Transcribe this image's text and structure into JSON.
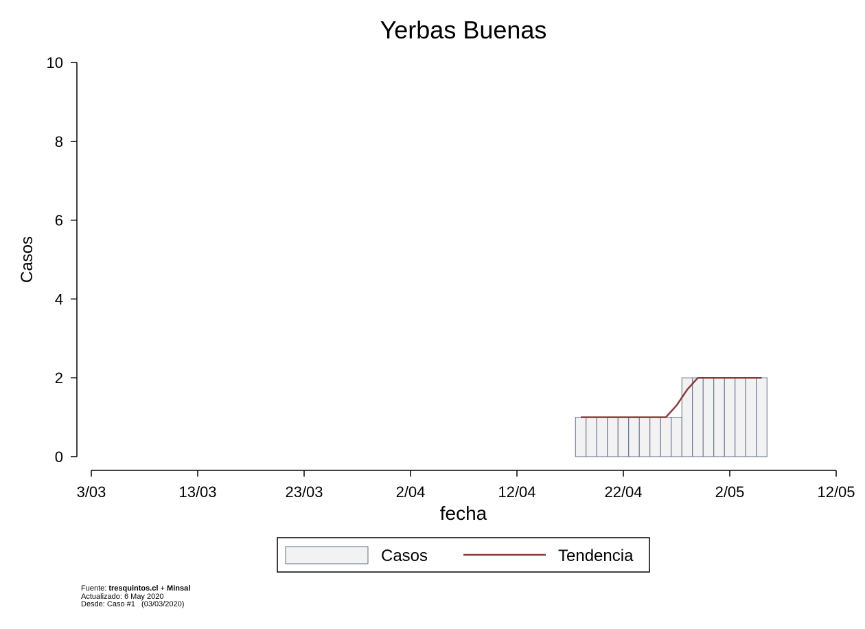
{
  "chart_data": {
    "type": "bar",
    "title": "Yerbas Buenas",
    "xlabel": "fecha",
    "ylabel": "Casos",
    "ylim": [
      0,
      10
    ],
    "yticks": [
      0,
      2,
      4,
      6,
      8,
      10
    ],
    "xticks": [
      "3/03",
      "13/03",
      "23/03",
      "2/04",
      "12/04",
      "22/04",
      "2/05",
      "12/05"
    ],
    "x_start_date": "2020-03-03",
    "x_end_date": "2020-05-12",
    "bars": {
      "name": "Casos",
      "start_date": "2020-04-18",
      "values": [
        1,
        1,
        1,
        1,
        1,
        1,
        1,
        1,
        1,
        1,
        2,
        2,
        2,
        2,
        2,
        2,
        2,
        2
      ],
      "fill": "#f2f2f2",
      "stroke": "#5a6e8c"
    },
    "trend": {
      "name": "Tendencia",
      "start_date": "2020-04-18",
      "values": [
        1,
        1,
        1,
        1,
        1,
        1,
        1,
        1,
        1,
        1.3,
        1.7,
        2,
        2,
        2,
        2,
        2,
        2,
        2
      ],
      "color": "#8b3a3a"
    },
    "legend": [
      "Casos",
      "Tendencia"
    ],
    "legend_position": "bottom",
    "grid": false
  },
  "footer": {
    "source_prefix": "Fuente: ",
    "source_site": "tresquintos.cl",
    "source_plus": " + ",
    "source_org": "Minsal",
    "updated": "Actualizado: 6 May 2020",
    "since": "Desde: Caso #1   (03/03/2020)"
  }
}
